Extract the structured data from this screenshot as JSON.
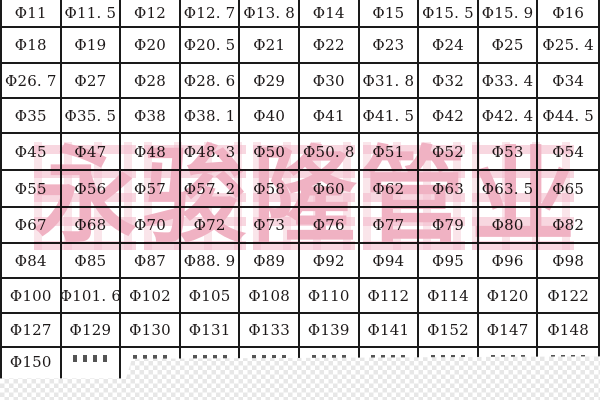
{
  "document": {
    "type": "pipe-diameter-specification-table",
    "unit_prefix": "Φ"
  },
  "colors": {
    "background": "#ffffff",
    "text": "#1c1818",
    "grid_border": "#1a1a1a",
    "watermark_pink": "#ec9cb2",
    "checker_gray": "#e7e7e7"
  },
  "watermark": {
    "text": "永骏隆管业"
  },
  "table": {
    "columns": 10,
    "rows": [
      [
        "Φ11",
        "Φ11. 5",
        "Φ12",
        "Φ12. 7",
        "Φ13. 8",
        "Φ14",
        "Φ15",
        "Φ15. 5",
        "Φ15. 9",
        "Φ16"
      ],
      [
        "Φ18",
        "Φ19",
        "Φ20",
        "Φ20. 5",
        "Φ21",
        "Φ22",
        "Φ23",
        "Φ24",
        "Φ25",
        "Φ25. 4"
      ],
      [
        "Φ26. 7",
        "Φ27",
        "Φ28",
        "Φ28. 6",
        "Φ29",
        "Φ30",
        "Φ31. 8",
        "Φ32",
        "Φ33. 4",
        "Φ34"
      ],
      [
        "Φ35",
        "Φ35. 5",
        "Φ38",
        "Φ38. 1",
        "Φ40",
        "Φ41",
        "Φ41. 5",
        "Φ42",
        "Φ42. 4",
        "Φ44. 5"
      ],
      [
        "Φ45",
        "Φ47",
        "Φ48",
        "Φ48. 3",
        "Φ50",
        "Φ50. 8",
        "Φ51",
        "Φ52",
        "Φ53",
        "Φ54"
      ],
      [
        "Φ55",
        "Φ56",
        "Φ57",
        "Φ57. 2",
        "Φ58",
        "Φ60",
        "Φ62",
        "Φ63",
        "Φ63. 5",
        "Φ65"
      ],
      [
        "Φ67",
        "Φ68",
        "Φ70",
        "Φ72",
        "Φ73",
        "Φ76",
        "Φ77",
        "Φ79",
        "Φ80",
        "Φ82"
      ],
      [
        "Φ84",
        "Φ85",
        "Φ87",
        "Φ88. 9",
        "Φ89",
        "Φ92",
        "Φ94",
        "Φ95",
        "Φ96",
        "Φ98"
      ],
      [
        "Φ100",
        "Φ101. 6",
        "Φ102",
        "Φ105",
        "Φ108",
        "Φ110",
        "Φ112",
        "Φ114",
        "Φ120",
        "Φ122"
      ],
      [
        "Φ127",
        "Φ129",
        "Φ130",
        "Φ131",
        "Φ133",
        "Φ139",
        "Φ141",
        "Φ152",
        "Φ147",
        "Φ148"
      ],
      [
        "Φ150",
        "",
        "",
        "",
        "",
        "",
        "",
        "",
        "",
        ""
      ]
    ]
  }
}
